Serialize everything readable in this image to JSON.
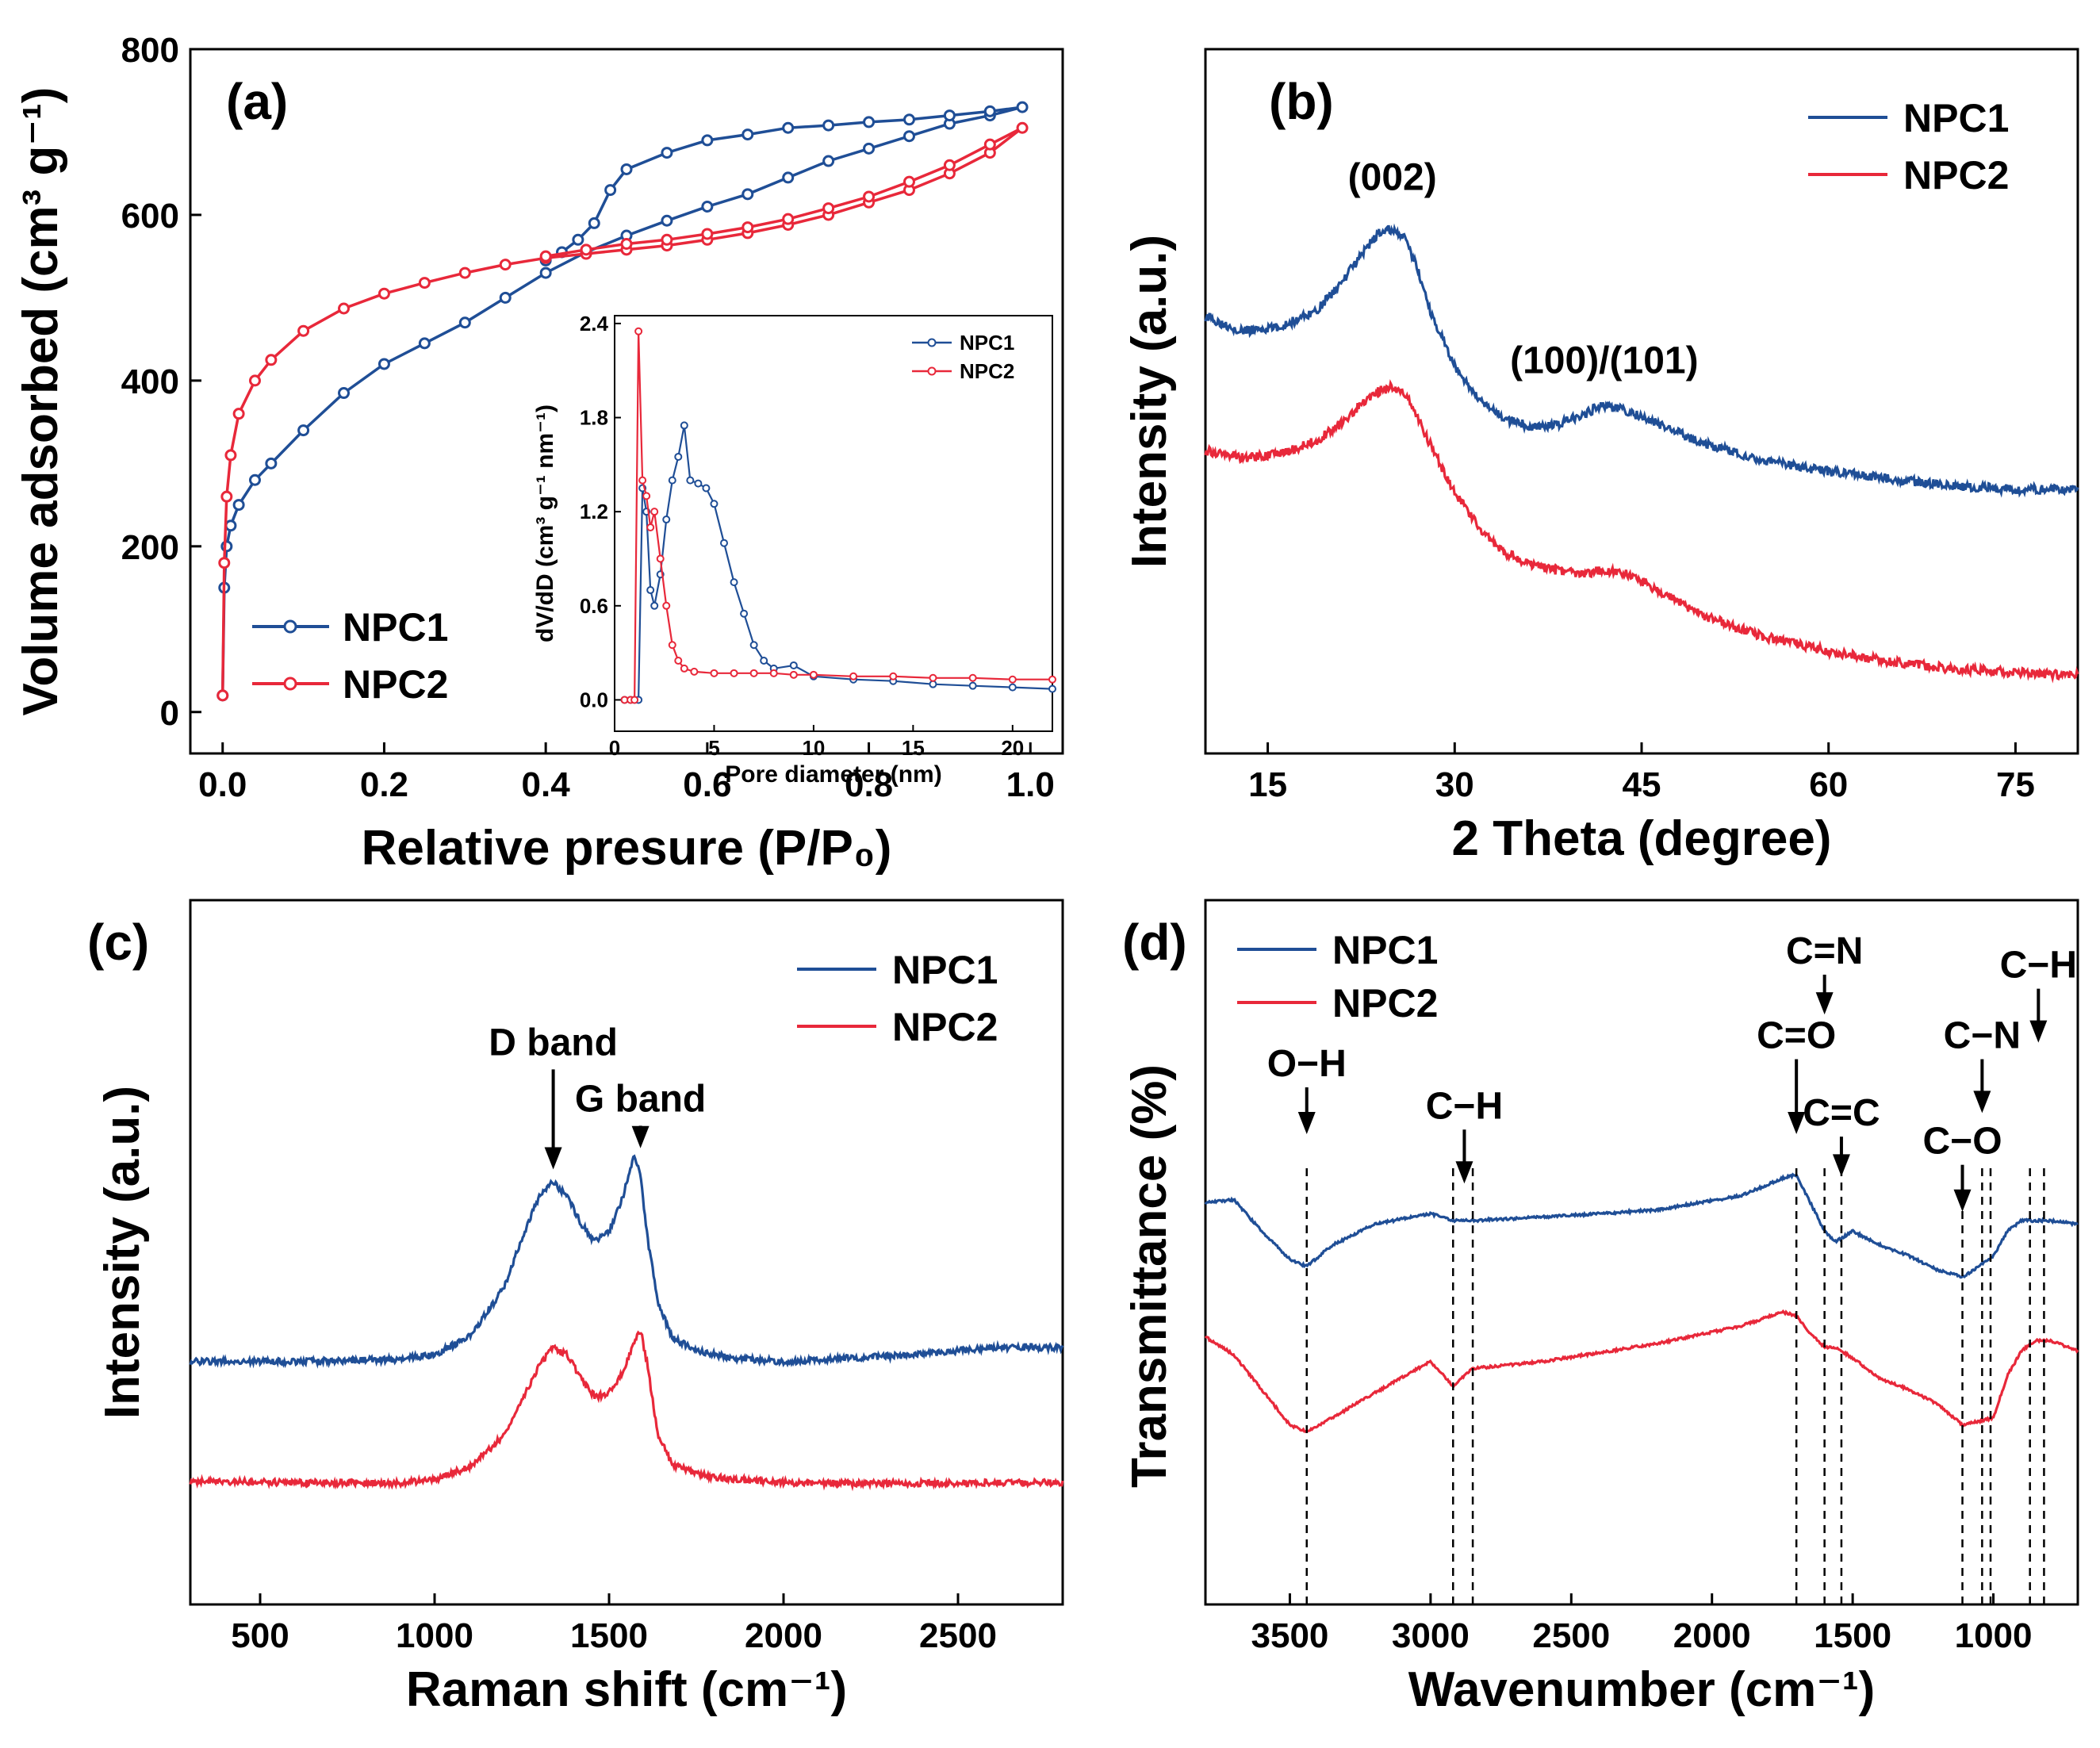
{
  "colors": {
    "npc1": "#1f4e96",
    "npc2": "#e8283a"
  },
  "chart_data": [
    {
      "id": "a",
      "type": "line",
      "panel_label": "(a)",
      "xlabel": "Relative presure (P/P₀)",
      "ylabel": "Volume adsorbed (cm³ g⁻¹)",
      "xlim": [
        -0.04,
        1.04
      ],
      "ylim": [
        -50,
        800
      ],
      "xticks": [
        0.0,
        0.2,
        0.4,
        0.6,
        0.8,
        1.0
      ],
      "xtick_labels": [
        "0.0",
        "0.2",
        "0.4",
        "0.6",
        "0.8",
        "1.0"
      ],
      "yticks": [
        0,
        200,
        400,
        600,
        800
      ],
      "ytick_labels": [
        "0",
        "200",
        "400",
        "600",
        "800"
      ],
      "legend_position": "bottom-left",
      "series": [
        {
          "name": "NPC1",
          "color": "#1f4e96",
          "markers": true,
          "x": [
            0.0,
            0.002,
            0.005,
            0.01,
            0.02,
            0.04,
            0.06,
            0.1,
            0.15,
            0.2,
            0.25,
            0.3,
            0.35,
            0.4,
            0.45,
            0.5,
            0.55,
            0.6,
            0.65,
            0.7,
            0.75,
            0.8,
            0.85,
            0.9,
            0.95,
            0.99,
            0.95,
            0.9,
            0.85,
            0.8,
            0.75,
            0.7,
            0.65,
            0.6,
            0.55,
            0.5,
            0.48,
            0.46,
            0.44,
            0.42,
            0.4
          ],
          "y": [
            20,
            150,
            200,
            225,
            250,
            280,
            300,
            340,
            385,
            420,
            445,
            470,
            500,
            530,
            555,
            575,
            593,
            610,
            625,
            645,
            665,
            680,
            695,
            710,
            720,
            730,
            725,
            720,
            715,
            712,
            708,
            705,
            697,
            690,
            675,
            655,
            630,
            590,
            570,
            555,
            545
          ]
        },
        {
          "name": "NPC2",
          "color": "#e8283a",
          "markers": true,
          "x": [
            0.0,
            0.002,
            0.005,
            0.01,
            0.02,
            0.04,
            0.06,
            0.1,
            0.15,
            0.2,
            0.25,
            0.3,
            0.35,
            0.4,
            0.45,
            0.5,
            0.55,
            0.6,
            0.65,
            0.7,
            0.75,
            0.8,
            0.85,
            0.9,
            0.95,
            0.99,
            0.95,
            0.9,
            0.85,
            0.8,
            0.75,
            0.7,
            0.65,
            0.6,
            0.55,
            0.5,
            0.45,
            0.4
          ],
          "y": [
            20,
            180,
            260,
            310,
            360,
            400,
            425,
            460,
            487,
            505,
            518,
            530,
            540,
            548,
            553,
            558,
            563,
            570,
            578,
            588,
            600,
            615,
            630,
            650,
            675,
            705,
            685,
            660,
            640,
            622,
            608,
            595,
            585,
            577,
            570,
            565,
            558,
            550
          ]
        }
      ],
      "inset": {
        "xlabel": "Pore diameter (nm)",
        "ylabel": "dV/dD (cm³ g⁻¹ nm⁻¹)",
        "xlim": [
          0,
          22
        ],
        "ylim": [
          -0.2,
          2.45
        ],
        "xticks": [
          0,
          5,
          10,
          15,
          20
        ],
        "xtick_labels": [
          "0",
          "5",
          "10",
          "15",
          "20"
        ],
        "yticks": [
          0.0,
          0.6,
          1.2,
          1.8,
          2.4
        ],
        "ytick_labels": [
          "0.0",
          "0.6",
          "1.2",
          "1.8",
          "2.4"
        ],
        "legend_position": "top-right",
        "series": [
          {
            "name": "NPC1",
            "color": "#1f4e96",
            "x": [
              0.5,
              0.8,
              1.0,
              1.2,
              1.4,
              1.6,
              1.8,
              2.0,
              2.3,
              2.6,
              2.9,
              3.2,
              3.5,
              3.8,
              4.2,
              4.6,
              5.0,
              5.5,
              6.0,
              6.5,
              7.0,
              7.5,
              8.0,
              9.0,
              10.0,
              12.0,
              14.0,
              16.0,
              18.0,
              20.0,
              22.0
            ],
            "y": [
              0.0,
              0.0,
              0.0,
              0.0,
              1.35,
              1.2,
              0.7,
              0.6,
              0.8,
              1.15,
              1.4,
              1.55,
              1.75,
              1.4,
              1.38,
              1.35,
              1.25,
              1.0,
              0.75,
              0.55,
              0.35,
              0.25,
              0.2,
              0.22,
              0.15,
              0.13,
              0.12,
              0.1,
              0.09,
              0.08,
              0.07
            ]
          },
          {
            "name": "NPC2",
            "color": "#e8283a",
            "x": [
              0.5,
              0.8,
              1.0,
              1.2,
              1.4,
              1.6,
              1.8,
              2.0,
              2.3,
              2.6,
              2.9,
              3.2,
              3.5,
              4.0,
              5.0,
              6.0,
              7.0,
              8.0,
              9.0,
              10.0,
              12.0,
              14.0,
              16.0,
              18.0,
              20.0,
              22.0
            ],
            "y": [
              0.0,
              0.0,
              0.0,
              2.35,
              1.4,
              1.3,
              1.1,
              1.2,
              0.9,
              0.6,
              0.35,
              0.25,
              0.2,
              0.18,
              0.17,
              0.17,
              0.17,
              0.17,
              0.16,
              0.16,
              0.15,
              0.15,
              0.14,
              0.14,
              0.13,
              0.13
            ]
          }
        ]
      }
    },
    {
      "id": "b",
      "type": "line",
      "panel_label": "(b)",
      "xlabel": "2 Theta (degree)",
      "ylabel": "Intensity (a.u.)",
      "xlim": [
        10,
        80
      ],
      "ylim": [
        0,
        100
      ],
      "xticks": [
        15,
        30,
        45,
        60,
        75
      ],
      "xtick_labels": [
        "15",
        "30",
        "45",
        "60",
        "75"
      ],
      "legend_position": "top-right",
      "series": [
        {
          "name": "NPC1",
          "color": "#1f4e96",
          "x": [
            10,
            13,
            16,
            19,
            21,
            23,
            24,
            25,
            26,
            27,
            28,
            30,
            32,
            34,
            36,
            38,
            40,
            42,
            44,
            46,
            48,
            50,
            55,
            60,
            65,
            70,
            75,
            80
          ],
          "y": [
            62,
            60,
            60.5,
            63,
            67,
            72,
            74,
            74.5,
            73,
            69,
            63,
            55,
            50,
            47.5,
            46.5,
            46.5,
            48,
            49.5,
            48.5,
            47,
            45.5,
            44,
            41.5,
            40,
            39,
            38,
            37.5,
            37.5
          ]
        },
        {
          "name": "NPC2",
          "color": "#e8283a",
          "x": [
            10,
            13,
            16,
            19,
            21,
            23,
            24,
            25,
            26,
            27,
            28,
            30,
            32,
            34,
            36,
            38,
            40,
            42,
            44,
            46,
            48,
            50,
            55,
            60,
            65,
            70,
            75,
            80
          ],
          "y": [
            43,
            42,
            42.5,
            44.5,
            47,
            50.5,
            51.5,
            52,
            51,
            48,
            44,
            37,
            32,
            28.5,
            27,
            26,
            25.5,
            26,
            25.5,
            23.5,
            21.5,
            19.5,
            16.5,
            14.5,
            13,
            12,
            11.5,
            11
          ]
        }
      ],
      "annotations": [
        {
          "text": "(002)",
          "x": 25,
          "y": 80
        },
        {
          "text": "(100)/(101)",
          "x": 42,
          "y": 54
        }
      ]
    },
    {
      "id": "c",
      "type": "line",
      "panel_label": "(c)",
      "xlabel": "Raman shift (cm⁻¹)",
      "ylabel": "Intensity (a.u.)",
      "xlim": [
        300,
        2800
      ],
      "ylim": [
        0,
        100
      ],
      "xticks": [
        500,
        1000,
        1500,
        2000,
        2500
      ],
      "xtick_labels": [
        "500",
        "1000",
        "1500",
        "2000",
        "2500"
      ],
      "legend_position": "top-right",
      "series": [
        {
          "name": "NPC1",
          "color": "#1f4e96",
          "x": [
            300,
            600,
            900,
            1000,
            1100,
            1200,
            1250,
            1300,
            1340,
            1380,
            1420,
            1460,
            1500,
            1540,
            1570,
            1590,
            1610,
            1640,
            1680,
            1750,
            1850,
            2000,
            2200,
            2400,
            2600,
            2800
          ],
          "y": [
            34.5,
            34.5,
            34.8,
            35.5,
            38,
            45,
            52,
            58,
            60,
            58,
            54,
            51.5,
            53,
            58,
            63.5,
            61,
            52,
            43,
            38,
            36,
            35,
            34.5,
            35,
            35.5,
            36.5,
            36.5
          ]
        },
        {
          "name": "NPC2",
          "color": "#e8283a",
          "x": [
            300,
            600,
            900,
            1000,
            1100,
            1200,
            1250,
            1300,
            1340,
            1380,
            1420,
            1460,
            1500,
            1540,
            1570,
            1590,
            1610,
            1640,
            1680,
            1750,
            1850,
            2000,
            2200,
            2400,
            2600,
            2800
          ],
          "y": [
            17.5,
            17.3,
            17.2,
            17.7,
            19.5,
            24,
            29,
            34,
            36.5,
            35.5,
            32,
            29.5,
            30,
            33,
            37,
            39,
            34,
            24,
            20,
            18.5,
            17.8,
            17.3,
            17.2,
            17.2,
            17.3,
            17.3
          ]
        }
      ],
      "annotations": [
        {
          "text": "D band",
          "x": 1340,
          "y": 78,
          "arrow_to": 62
        },
        {
          "text": "G band",
          "x": 1590,
          "y": 70,
          "arrow_to": 65
        }
      ]
    },
    {
      "id": "d",
      "type": "line",
      "panel_label": "(d)",
      "xlabel": "Wavenumber (cm⁻¹)",
      "ylabel": "Transmittance (%)",
      "xlim": [
        3800,
        700
      ],
      "ylim": [
        0,
        100
      ],
      "xticks": [
        3500,
        3000,
        2500,
        2000,
        1500,
        1000
      ],
      "xtick_labels": [
        "3500",
        "3000",
        "2500",
        "2000",
        "1500",
        "1000"
      ],
      "legend_position": "top-left",
      "series": [
        {
          "name": "NPC1",
          "color": "#1f4e96",
          "x": [
            3800,
            3700,
            3600,
            3500,
            3440,
            3350,
            3200,
            3000,
            2920,
            2850,
            2600,
            2200,
            1900,
            1750,
            1700,
            1650,
            1600,
            1560,
            1500,
            1400,
            1300,
            1200,
            1110,
            1050,
            1000,
            950,
            900,
            850,
            800,
            700
          ],
          "y": [
            57,
            57.5,
            53,
            49,
            48,
            51,
            54,
            55.5,
            54.5,
            54.5,
            55,
            56,
            58,
            60.5,
            61,
            57,
            53,
            51.5,
            53,
            51,
            49.5,
            47.5,
            46.5,
            48,
            49.5,
            53,
            54.5,
            54.5,
            54.5,
            54
          ]
        },
        {
          "name": "NPC2",
          "color": "#e8283a",
          "x": [
            3800,
            3700,
            3600,
            3500,
            3440,
            3350,
            3200,
            3000,
            2920,
            2850,
            2600,
            2200,
            1900,
            1750,
            1700,
            1650,
            1600,
            1560,
            1500,
            1400,
            1300,
            1200,
            1110,
            1050,
            1000,
            950,
            900,
            850,
            800,
            700
          ],
          "y": [
            38,
            35.5,
            30.5,
            25.5,
            24.5,
            26.5,
            30,
            34.5,
            31,
            33.5,
            34.5,
            37,
            39.5,
            41.5,
            41,
            38.5,
            36.5,
            36.5,
            35,
            32,
            30.5,
            28.5,
            25.5,
            26,
            26.5,
            32.5,
            36,
            37.5,
            37.5,
            36
          ]
        }
      ],
      "annotations": [
        {
          "text": "O−H",
          "x": 3440,
          "label_y": 75,
          "arrow_to": 67
        },
        {
          "text": "C−H",
          "x": 2880,
          "label_y": 69,
          "arrow_to": 60
        },
        {
          "text": "C=O",
          "x": 1700,
          "label_y": 79,
          "arrow_to": 67
        },
        {
          "text": "C=N",
          "x": 1600,
          "label_y": 91,
          "arrow_to": 84
        },
        {
          "text": "C=C",
          "x": 1540,
          "label_y": 68,
          "arrow_to": 61
        },
        {
          "text": "C−O",
          "x": 1110,
          "label_y": 64,
          "arrow_to": 56
        },
        {
          "text": "C−N",
          "x": 1040,
          "label_y": 79,
          "arrow_to": 70
        },
        {
          "text": "C−H",
          "x": 840,
          "label_y": 89,
          "arrow_to": 80
        }
      ],
      "dashed_lines": [
        3440,
        2920,
        2850,
        1700,
        1600,
        1540,
        1110,
        1040,
        1010,
        870,
        820
      ]
    }
  ]
}
